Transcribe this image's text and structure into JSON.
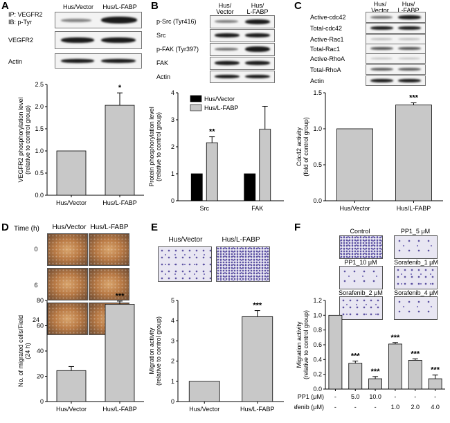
{
  "panels": {
    "A": {
      "label": "A",
      "blot": {
        "columns": [
          "Hus/Vector",
          "Hus/L-FABP"
        ],
        "ip_label": "IP: VEGFR2",
        "ib_label": "IB: p-Tyr",
        "rows": [
          "VEGFR2",
          "Actin"
        ]
      }
    },
    "B": {
      "label": "B",
      "blot": {
        "columns": [
          "Hus/\nVector",
          "Hus/\nL-FABP"
        ],
        "rows": [
          "p-Src (Tyr416)",
          "Src",
          "p-FAK (Tyr397)",
          "FAK",
          "Actin"
        ]
      }
    },
    "C": {
      "label": "C",
      "blot": {
        "columns": [
          "Hus/\nVector",
          "Hus/\nL-FABP"
        ],
        "rows": [
          "Active-cdc42",
          "Total-cdc42",
          "Active-Rac1",
          "Total-Rac1",
          "Active-RhoA",
          "Total-RhoA",
          "Actin"
        ]
      }
    },
    "D": {
      "label": "D",
      "time_header": "Time (h)",
      "columns": [
        "Hus/Vector",
        "Hus/L-FABP"
      ],
      "times": [
        "0",
        "6",
        "24"
      ]
    },
    "E": {
      "label": "E",
      "columns": [
        "Hus/Vector",
        "Hus/L-FABP"
      ]
    },
    "F": {
      "label": "F",
      "images": [
        "Control",
        "PP1_5 μM",
        "PP1_10 μM",
        "Sorafenib_1 μM",
        "Sorafenib_2 μM",
        "Sorafenib_4 μM"
      ],
      "pp1_label": "PP1 (μM)",
      "sorafenib_label": "Sorafenib (μM)",
      "pp1_values": [
        "-",
        "5.0",
        "10.0",
        "-",
        "-",
        "-"
      ],
      "sorafenib_values": [
        "-",
        "-",
        "-",
        "1.0",
        "2.0",
        "4.0"
      ]
    }
  },
  "chart_data": [
    {
      "id": "A",
      "type": "bar",
      "categories": [
        "Hus/Vector",
        "Hus/L-FABP"
      ],
      "values": [
        1.0,
        2.03
      ],
      "errors": [
        0,
        0.28
      ],
      "significance": [
        "",
        "*"
      ],
      "ylabel": "VEGFR2 phosphorylation level\n(relative to control group)",
      "ylim": [
        0,
        2.5
      ],
      "yticks": [
        "0.0",
        "0.5",
        "1.0",
        "1.5",
        "2.0",
        "2.5"
      ],
      "colors": [
        "#c8c8c8"
      ]
    },
    {
      "id": "B",
      "type": "bar",
      "categories": [
        "Src",
        "FAK"
      ],
      "series": [
        {
          "name": "Hus/Vector",
          "values": [
            1.0,
            1.0
          ],
          "errors": [
            0,
            0
          ],
          "significance": [
            "",
            ""
          ],
          "color": "#000000"
        },
        {
          "name": "Hus/L-FABP",
          "values": [
            2.15,
            2.65
          ],
          "errors": [
            0.22,
            0.85
          ],
          "significance": [
            "**",
            ""
          ],
          "color": "#c8c8c8"
        }
      ],
      "ylabel": "Protein phosphorylation level\n(relative to control group)",
      "ylim": [
        0,
        4
      ],
      "yticks": [
        "0",
        "1",
        "2",
        "3",
        "4"
      ],
      "legend_position": "top-left"
    },
    {
      "id": "C",
      "type": "bar",
      "categories": [
        "Hus/Vector",
        "Hus/L-FABP"
      ],
      "values": [
        1.0,
        1.33
      ],
      "errors": [
        0,
        0.03
      ],
      "significance": [
        "",
        "***"
      ],
      "ylabel": "Cdc42 activity\n(fold of control group)",
      "ylim": [
        0,
        1.5
      ],
      "yticks": [
        "0.0",
        "0.5",
        "1.0",
        "1.5"
      ],
      "colors": [
        "#c8c8c8"
      ]
    },
    {
      "id": "D",
      "type": "bar",
      "categories": [
        "Hus/Vector",
        "Hus/L-FABP"
      ],
      "values": [
        24.5,
        77
      ],
      "errors": [
        3.2,
        2.5
      ],
      "significance": [
        "",
        "***"
      ],
      "ylabel": "No. of migrated cells/Field\n(24 h)",
      "ylim": [
        0,
        80
      ],
      "yticks": [
        "0",
        "20",
        "40",
        "60",
        "80"
      ],
      "colors": [
        "#c8c8c8"
      ]
    },
    {
      "id": "E",
      "type": "bar",
      "categories": [
        "Hus/Vector",
        "Hus/L-FABP"
      ],
      "values": [
        1.0,
        4.2
      ],
      "errors": [
        0,
        0.3
      ],
      "significance": [
        "",
        "***"
      ],
      "ylabel": "Migration activity\n(relative to control group)",
      "ylim": [
        0,
        5
      ],
      "yticks": [
        "0",
        "1",
        "2",
        "3",
        "4",
        "5"
      ],
      "colors": [
        "#c8c8c8"
      ]
    },
    {
      "id": "F",
      "type": "bar",
      "categories": [
        "Control",
        "PP1 5.0",
        "PP1 10.0",
        "Sorafenib 1.0",
        "Sorafenib 2.0",
        "Sorafenib 4.0"
      ],
      "values": [
        1.0,
        0.35,
        0.14,
        0.61,
        0.39,
        0.14
      ],
      "errors": [
        0,
        0.03,
        0.03,
        0.02,
        0.02,
        0.05
      ],
      "significance": [
        "",
        "***",
        "***",
        "***",
        "***",
        "***"
      ],
      "ylabel": "Migration activity\n(relative to control group)",
      "ylim": [
        0,
        1.2
      ],
      "yticks": [
        "0.0",
        "0.2",
        "0.4",
        "0.6",
        "0.8",
        "1.0",
        "1.2"
      ],
      "colors": [
        "#c8c8c8"
      ]
    }
  ]
}
